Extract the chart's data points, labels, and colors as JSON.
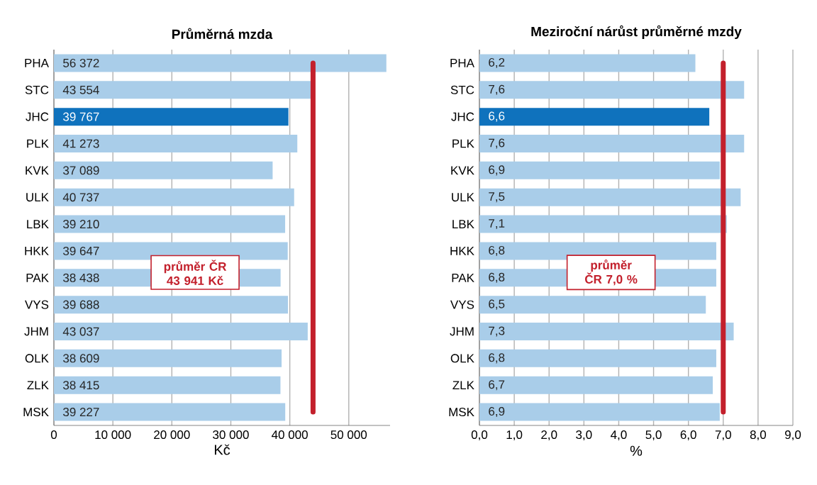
{
  "chart_data": [
    {
      "type": "bar",
      "orientation": "horizontal",
      "title": "Průměrná mzda",
      "xlabel": "Kč",
      "categories": [
        "PHA",
        "STC",
        "JHC",
        "PLK",
        "KVK",
        "ULK",
        "LBK",
        "HKK",
        "PAK",
        "VYS",
        "JHM",
        "OLK",
        "ZLK",
        "MSK"
      ],
      "values": [
        56372,
        43554,
        39767,
        41273,
        37089,
        40737,
        39210,
        39647,
        38438,
        39688,
        43037,
        38609,
        38415,
        39227
      ],
      "value_labels": [
        "56 372",
        "43 554",
        "39 767",
        "41 273",
        "37 089",
        "40 737",
        "39 210",
        "39 647",
        "38 438",
        "39 688",
        "43 037",
        "38 609",
        "38 415",
        "39 227"
      ],
      "colors": [
        "#a9cde9",
        "#a9cde9",
        "#0f72bd",
        "#a9cde9",
        "#a9cde9",
        "#a9cde9",
        "#a9cde9",
        "#a9cde9",
        "#a9cde9",
        "#a9cde9",
        "#a9cde9",
        "#a9cde9",
        "#a9cde9",
        "#a9cde9"
      ],
      "xlim": [
        0,
        57000
      ],
      "xticks": [
        0,
        {
          "value": 10000,
          "label": "10 000"
        },
        {
          "value": 20000,
          "label": "20 000"
        },
        {
          "value": 30000,
          "label": "30 000"
        },
        {
          "value": 40000,
          "label": "40 000"
        },
        {
          "value": 50000,
          "label": "50 000"
        }
      ],
      "grid": "x",
      "ref_lines": [
        {
          "axis": "x",
          "value": 43941,
          "label": "průměr ČR 43 941 Kč",
          "color": "#c3202c"
        }
      ]
    },
    {
      "type": "bar",
      "orientation": "horizontal",
      "title": "Meziroční nárůst průměrné mzdy",
      "xlabel": "%",
      "categories": [
        "PHA",
        "STC",
        "JHC",
        "PLK",
        "KVK",
        "ULK",
        "LBK",
        "HKK",
        "PAK",
        "VYS",
        "JHM",
        "OLK",
        "ZLK",
        "MSK"
      ],
      "values": [
        6.2,
        7.6,
        6.6,
        7.6,
        6.9,
        7.5,
        7.1,
        6.8,
        6.8,
        6.5,
        7.3,
        6.8,
        6.7,
        6.9
      ],
      "value_labels": [
        "6,2",
        "7,6",
        "6,6",
        "7,6",
        "6,9",
        "7,5",
        "7,1",
        "6,8",
        "6,8",
        "6,5",
        "7,3",
        "6,8",
        "6,7",
        "6,9"
      ],
      "colors": [
        "#a9cde9",
        "#a9cde9",
        "#0f72bd",
        "#a9cde9",
        "#a9cde9",
        "#a9cde9",
        "#a9cde9",
        "#a9cde9",
        "#a9cde9",
        "#a9cde9",
        "#a9cde9",
        "#a9cde9",
        "#a9cde9",
        "#a9cde9"
      ],
      "xlim": [
        0,
        9
      ],
      "xticks": [
        {
          "value": 0,
          "label": "0,0"
        },
        {
          "value": 1,
          "label": "1,0"
        },
        {
          "value": 2,
          "label": "2,0"
        },
        {
          "value": 3,
          "label": "3,0"
        },
        {
          "value": 4,
          "label": "4,0"
        },
        {
          "value": 5,
          "label": "5,0"
        },
        {
          "value": 6,
          "label": "6,0"
        },
        {
          "value": 7,
          "label": "7,0"
        },
        {
          "value": 8,
          "label": "8,0"
        },
        {
          "value": 9,
          "label": "9,0"
        }
      ],
      "grid": "x",
      "ref_lines": [
        {
          "axis": "x",
          "value": 7.0,
          "label": "průměr ČR 7,0 %",
          "color": "#c3202c"
        }
      ]
    }
  ]
}
